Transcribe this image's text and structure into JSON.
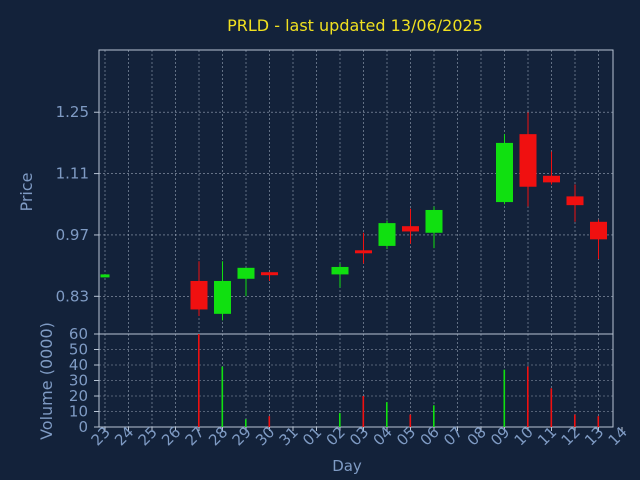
{
  "title": "PRLD - last updated 13/06/2025",
  "colors": {
    "background": "#13223a",
    "title": "#f0e020",
    "axis_text": "#7f9bc4",
    "frame": "#b8c4d4",
    "up": "#10e010",
    "down": "#f01010"
  },
  "chart_data": [
    {
      "type": "candlestick",
      "ylabel": "Price",
      "ylim": [
        0.744,
        1.392
      ],
      "yticks": [
        0.83,
        0.97,
        1.11,
        1.25
      ],
      "ytick_labels": [
        "0.83",
        "0.97",
        "1.11",
        "1.25"
      ],
      "grid": true,
      "candles": [
        {
          "day": "23",
          "open": 0.88,
          "close": 0.88,
          "high": 0.88,
          "low": 0.88
        },
        {
          "day": "27",
          "open": 0.865,
          "close": 0.8,
          "high": 0.91,
          "low": 0.785
        },
        {
          "day": "28",
          "open": 0.79,
          "close": 0.865,
          "high": 0.91,
          "low": 0.775
        },
        {
          "day": "29",
          "open": 0.87,
          "close": 0.895,
          "high": 0.895,
          "low": 0.83
        },
        {
          "day": "30",
          "open": 0.885,
          "close": 0.88,
          "high": 0.885,
          "low": 0.865
        },
        {
          "day": "02",
          "open": 0.88,
          "close": 0.897,
          "high": 0.905,
          "low": 0.85
        },
        {
          "day": "03",
          "open": 0.935,
          "close": 0.93,
          "high": 0.975,
          "low": 0.905
        },
        {
          "day": "04",
          "open": 0.945,
          "close": 0.997,
          "high": 1.003,
          "low": 0.938
        },
        {
          "day": "05",
          "open": 0.99,
          "close": 0.978,
          "high": 1.03,
          "low": 0.95
        },
        {
          "day": "06",
          "open": 0.975,
          "close": 1.027,
          "high": 1.035,
          "low": 0.94
        },
        {
          "day": "09",
          "open": 1.045,
          "close": 1.18,
          "high": 1.2,
          "low": 1.04
        },
        {
          "day": "10",
          "open": 1.2,
          "close": 1.08,
          "high": 1.25,
          "low": 1.035
        },
        {
          "day": "11",
          "open": 1.105,
          "close": 1.09,
          "high": 1.16,
          "low": 1.085
        },
        {
          "day": "12",
          "open": 1.058,
          "close": 1.038,
          "high": 1.085,
          "low": 1.0
        },
        {
          "day": "13",
          "open": 1.0,
          "close": 0.96,
          "high": 1.005,
          "low": 0.915
        }
      ]
    },
    {
      "type": "bar",
      "ylabel": "Volume (0000)",
      "xlabel": "Day",
      "ylim": [
        0,
        60
      ],
      "yticks": [
        0,
        10,
        20,
        30,
        40,
        50,
        60
      ],
      "ytick_labels": [
        "0",
        "10",
        "20",
        "30",
        "40",
        "50",
        "60"
      ],
      "grid": true,
      "categories": [
        "23",
        "24",
        "25",
        "26",
        "27",
        "28",
        "29",
        "30",
        "31",
        "01",
        "02",
        "03",
        "04",
        "05",
        "06",
        "07",
        "08",
        "09",
        "10",
        "11",
        "12",
        "13",
        "14"
      ],
      "volumes": [
        {
          "day": "27",
          "value": 60,
          "direction": "down"
        },
        {
          "day": "28",
          "value": 39,
          "direction": "up"
        },
        {
          "day": "29",
          "value": 5,
          "direction": "up"
        },
        {
          "day": "30",
          "value": 7,
          "direction": "down"
        },
        {
          "day": "02",
          "value": 9,
          "direction": "up"
        },
        {
          "day": "03",
          "value": 20,
          "direction": "down"
        },
        {
          "day": "04",
          "value": 16,
          "direction": "up"
        },
        {
          "day": "05",
          "value": 8,
          "direction": "down"
        },
        {
          "day": "06",
          "value": 14,
          "direction": "up"
        },
        {
          "day": "09",
          "value": 37,
          "direction": "up"
        },
        {
          "day": "10",
          "value": 39,
          "direction": "down"
        },
        {
          "day": "11",
          "value": 25,
          "direction": "down"
        },
        {
          "day": "12",
          "value": 8,
          "direction": "down"
        },
        {
          "day": "13",
          "value": 7,
          "direction": "down"
        }
      ]
    }
  ]
}
